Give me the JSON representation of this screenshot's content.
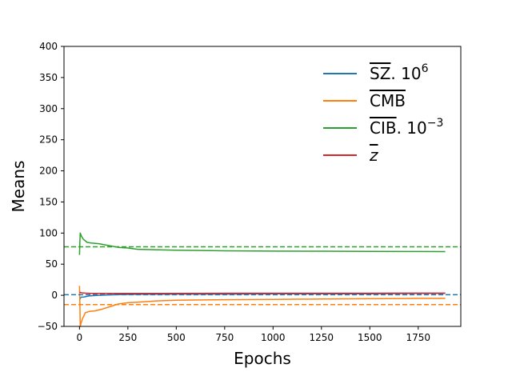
{
  "chart_data": {
    "type": "line",
    "title": "",
    "xlabel": "Epochs",
    "ylabel": "Means",
    "xlim": [
      -80,
      1970
    ],
    "ylim": [
      -50,
      400
    ],
    "xticks": [
      0,
      250,
      500,
      750,
      1000,
      1250,
      1500,
      1750
    ],
    "yticks": [
      -50,
      0,
      50,
      100,
      150,
      200,
      250,
      300,
      350,
      400
    ],
    "grid": false,
    "legend_position": "top-right",
    "series": [
      {
        "name": "SZ.10^6",
        "legend": {
          "base": "SZ",
          "overline": true,
          "suffix": ". 10",
          "sup": "6"
        },
        "color": "#1f77b4",
        "reference": 1,
        "points": [
          [
            0,
            -8
          ],
          [
            5,
            -4
          ],
          [
            10,
            -3
          ],
          [
            20,
            -3
          ],
          [
            50,
            -1
          ],
          [
            100,
            0
          ],
          [
            200,
            1
          ],
          [
            300,
            1.5
          ],
          [
            500,
            2
          ],
          [
            750,
            2
          ],
          [
            1000,
            2.5
          ],
          [
            1250,
            2.5
          ],
          [
            1500,
            2.5
          ],
          [
            1750,
            3
          ],
          [
            1890,
            3
          ]
        ]
      },
      {
        "name": "CMB",
        "legend": {
          "base": "CMB",
          "overline": true,
          "suffix": "",
          "sup": ""
        },
        "color": "#ff7f0e",
        "reference": -15,
        "points": [
          [
            0,
            15
          ],
          [
            2,
            -10
          ],
          [
            4,
            -50
          ],
          [
            8,
            -45
          ],
          [
            15,
            -38
          ],
          [
            30,
            -28
          ],
          [
            50,
            -26
          ],
          [
            80,
            -25
          ],
          [
            120,
            -22
          ],
          [
            160,
            -18
          ],
          [
            200,
            -14
          ],
          [
            250,
            -12
          ],
          [
            300,
            -11
          ],
          [
            400,
            -9
          ],
          [
            500,
            -8
          ],
          [
            750,
            -7
          ],
          [
            1000,
            -6.5
          ],
          [
            1250,
            -6
          ],
          [
            1500,
            -5.5
          ],
          [
            1750,
            -5
          ],
          [
            1890,
            -5
          ]
        ]
      },
      {
        "name": "CIB.10^-3",
        "legend": {
          "base": "CIB",
          "overline": true,
          "suffix": ". 10",
          "sup": "−3"
        },
        "color": "#2ca02c",
        "reference": 78,
        "points": [
          [
            0,
            65
          ],
          [
            2,
            85
          ],
          [
            4,
            100
          ],
          [
            10,
            95
          ],
          [
            20,
            90
          ],
          [
            40,
            85
          ],
          [
            60,
            84
          ],
          [
            100,
            83
          ],
          [
            150,
            80
          ],
          [
            200,
            77
          ],
          [
            250,
            76
          ],
          [
            300,
            74
          ],
          [
            400,
            73
          ],
          [
            500,
            72.5
          ],
          [
            750,
            71.5
          ],
          [
            1000,
            71
          ],
          [
            1250,
            70.8
          ],
          [
            1500,
            70.5
          ],
          [
            1750,
            70.3
          ],
          [
            1890,
            70.2
          ]
        ]
      },
      {
        "name": "z",
        "legend": {
          "base": "z",
          "overline": true,
          "suffix": "",
          "sup": "",
          "italic": true
        },
        "color": "#d62728",
        "reference": null,
        "points": [
          [
            0,
            5
          ],
          [
            10,
            4
          ],
          [
            30,
            3.5
          ],
          [
            60,
            3
          ],
          [
            100,
            3
          ],
          [
            200,
            3
          ],
          [
            400,
            3
          ],
          [
            600,
            3.2
          ],
          [
            800,
            3.3
          ],
          [
            1000,
            3.3
          ],
          [
            1250,
            3.4
          ],
          [
            1500,
            3.4
          ],
          [
            1750,
            3.5
          ],
          [
            1890,
            3.5
          ]
        ]
      }
    ]
  }
}
